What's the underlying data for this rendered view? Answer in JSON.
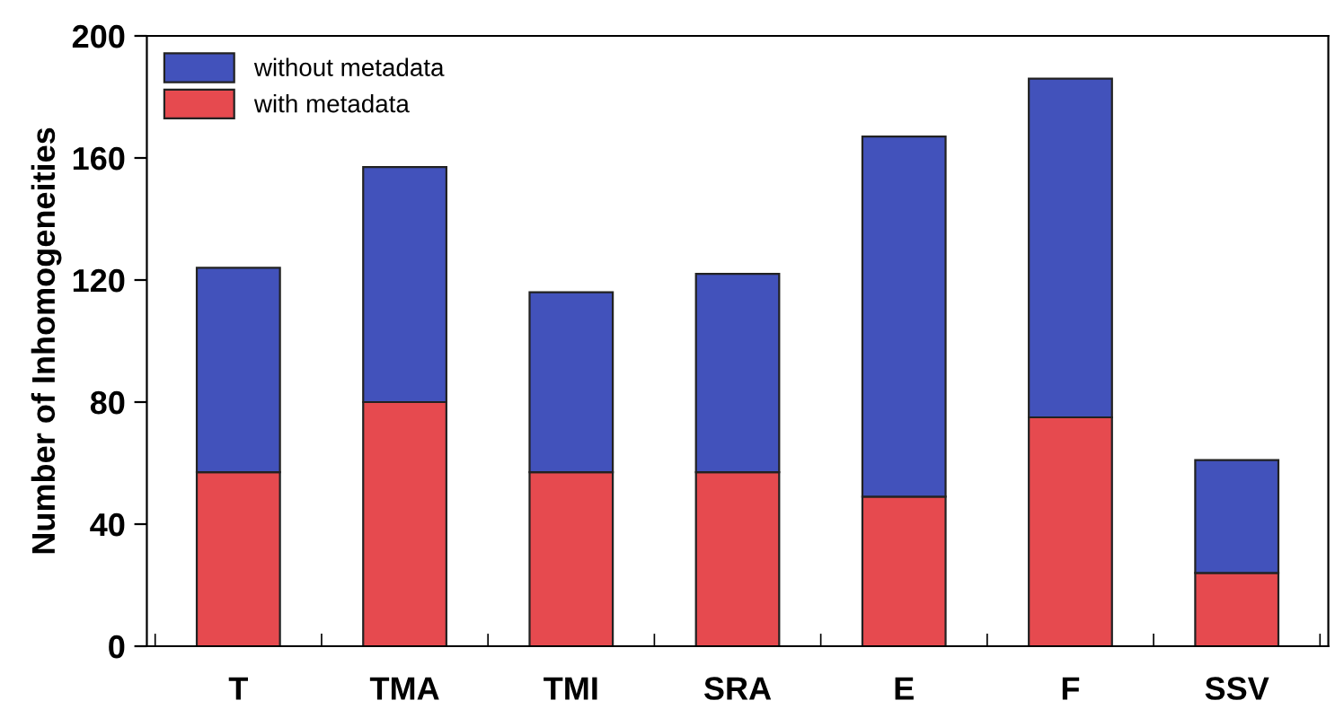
{
  "chart_data": {
    "type": "bar",
    "stacked": true,
    "ylabel": "Number of Inhomogeneities",
    "categories": [
      "T",
      "TMA",
      "TMI",
      "SRA",
      "E",
      "F",
      "SSV"
    ],
    "series": [
      {
        "name": "with metadata",
        "color": "#e64a4f",
        "values": [
          57,
          80,
          57,
          57,
          49,
          75,
          24
        ]
      },
      {
        "name": "without metadata",
        "color": "#4252bb",
        "values": [
          67,
          77,
          59,
          65,
          118,
          111,
          37
        ]
      }
    ],
    "ylim": [
      0,
      200
    ],
    "yticks": [
      0,
      40,
      80,
      120,
      160,
      200
    ],
    "grid": false,
    "legend": "top left"
  }
}
